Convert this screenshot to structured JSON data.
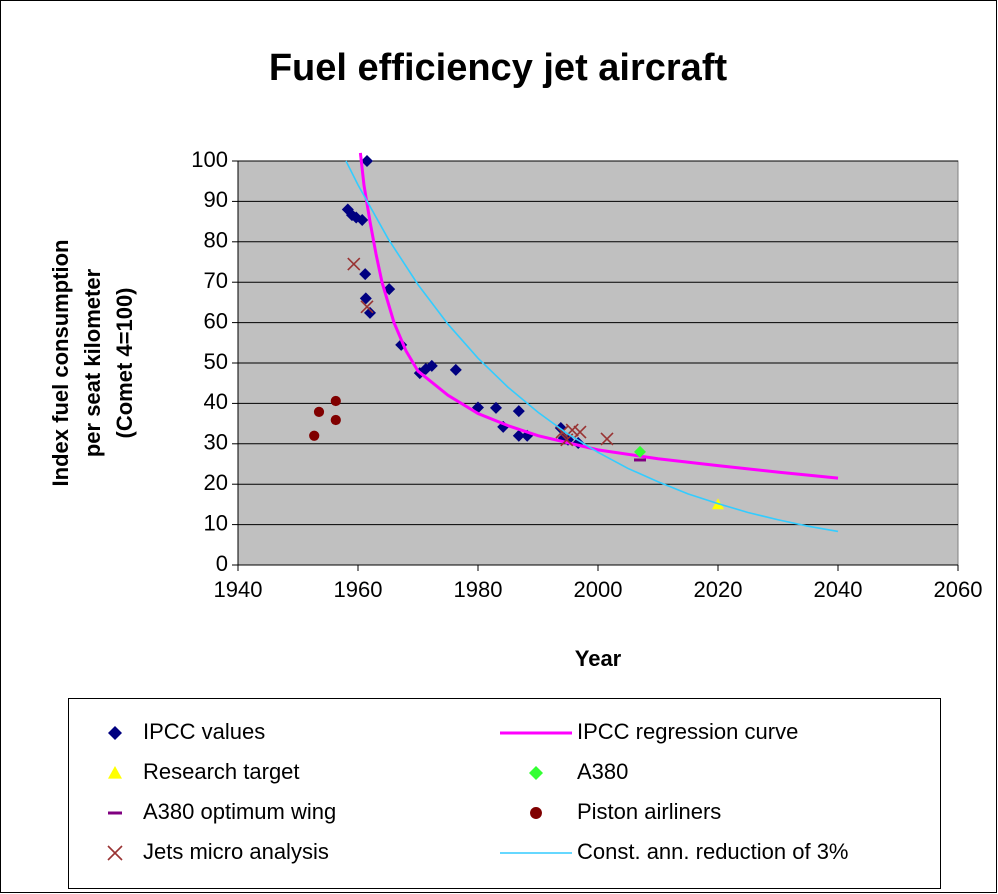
{
  "chart_data": {
    "type": "scatter",
    "title": "Fuel efficiency jet aircraft",
    "x_label": "Year",
    "y_label": [
      "Index fuel consumption",
      "per seat kilometer",
      "(Comet 4=100)"
    ],
    "xlim": [
      1940,
      2060
    ],
    "xticks": [
      1940,
      1960,
      1980,
      2000,
      2020,
      2040,
      2060
    ],
    "ylim": [
      0,
      100
    ],
    "yticks": [
      0,
      10,
      20,
      30,
      40,
      50,
      60,
      70,
      80,
      90,
      100
    ],
    "grid": true,
    "plot_background": "#c0c0c0",
    "legend": "bottom",
    "series": [
      {
        "name": "IPCC values",
        "marker": "diamond",
        "color": "#000080",
        "x": [
          1961.5,
          1958.3,
          1959,
          1959.7,
          1960.7,
          1961.2,
          1961.3,
          1962,
          1965.2,
          1967.2,
          1970.3,
          1971.3,
          1972.3,
          1976.3,
          1980,
          1983,
          1984.2,
          1986.8,
          1986.8,
          1988.2,
          1993.8,
          1994.3,
          1995,
          1996.7
        ],
        "y": [
          100,
          88,
          86.6,
          86,
          85.4,
          72,
          66,
          62.4,
          68.3,
          54.5,
          47.5,
          48.5,
          49.3,
          48.3,
          39,
          38.9,
          34.2,
          38.1,
          32,
          32,
          33.9,
          31.4,
          31,
          30.2
        ]
      },
      {
        "name": "IPCC regression curve",
        "marker": "line",
        "color": "#ff00ff",
        "x": [
          1960.4,
          1961,
          1962,
          1963,
          1964,
          1966,
          1968,
          1970,
          1975,
          1980,
          1985,
          1990,
          2000,
          2010,
          2020,
          2030,
          2040
        ],
        "y": [
          102,
          94,
          85,
          77,
          70,
          60,
          53,
          48,
          42,
          37.5,
          34.5,
          32,
          28.5,
          26.3,
          24.6,
          23,
          21.5
        ]
      },
      {
        "name": "Research target",
        "marker": "triangle",
        "color": "#ffff00",
        "x": [
          2020
        ],
        "y": [
          15
        ]
      },
      {
        "name": "A380",
        "marker": "diamond",
        "color": "#33ff33",
        "x": [
          2007
        ],
        "y": [
          28
        ]
      },
      {
        "name": "A380 optimum wing",
        "marker": "dash",
        "color": "#800080",
        "x": [
          2007
        ],
        "y": [
          26
        ]
      },
      {
        "name": "Piston airliners",
        "marker": "circle",
        "color": "#800000",
        "x": [
          1952.7,
          1953.5,
          1956.3,
          1956.3
        ],
        "y": [
          32,
          37.9,
          40.6,
          35.9
        ]
      },
      {
        "name": "Jets micro analysis",
        "marker": "x",
        "color": "#993333",
        "x": [
          1959.3,
          1961.5,
          1994,
          1994.8,
          1995.7,
          1997,
          2001.5
        ],
        "y": [
          74.5,
          63.9,
          32.9,
          31,
          33.4,
          32.9,
          31.2
        ]
      },
      {
        "name": "Const. ann. reduction of 3%",
        "marker": "line",
        "color": "#33ccff",
        "x": [
          1958,
          1960,
          1965,
          1970,
          1975,
          1980,
          1985,
          1990,
          1995,
          2000,
          2005,
          2010,
          2015,
          2020,
          2025,
          2030,
          2035,
          2040
        ],
        "y": [
          100,
          94.1,
          80.8,
          69.4,
          59.6,
          51.2,
          44,
          37.8,
          32.4,
          27.9,
          23.9,
          20.6,
          17.6,
          15.2,
          13,
          11.2,
          9.6,
          8.3
        ]
      }
    ]
  }
}
